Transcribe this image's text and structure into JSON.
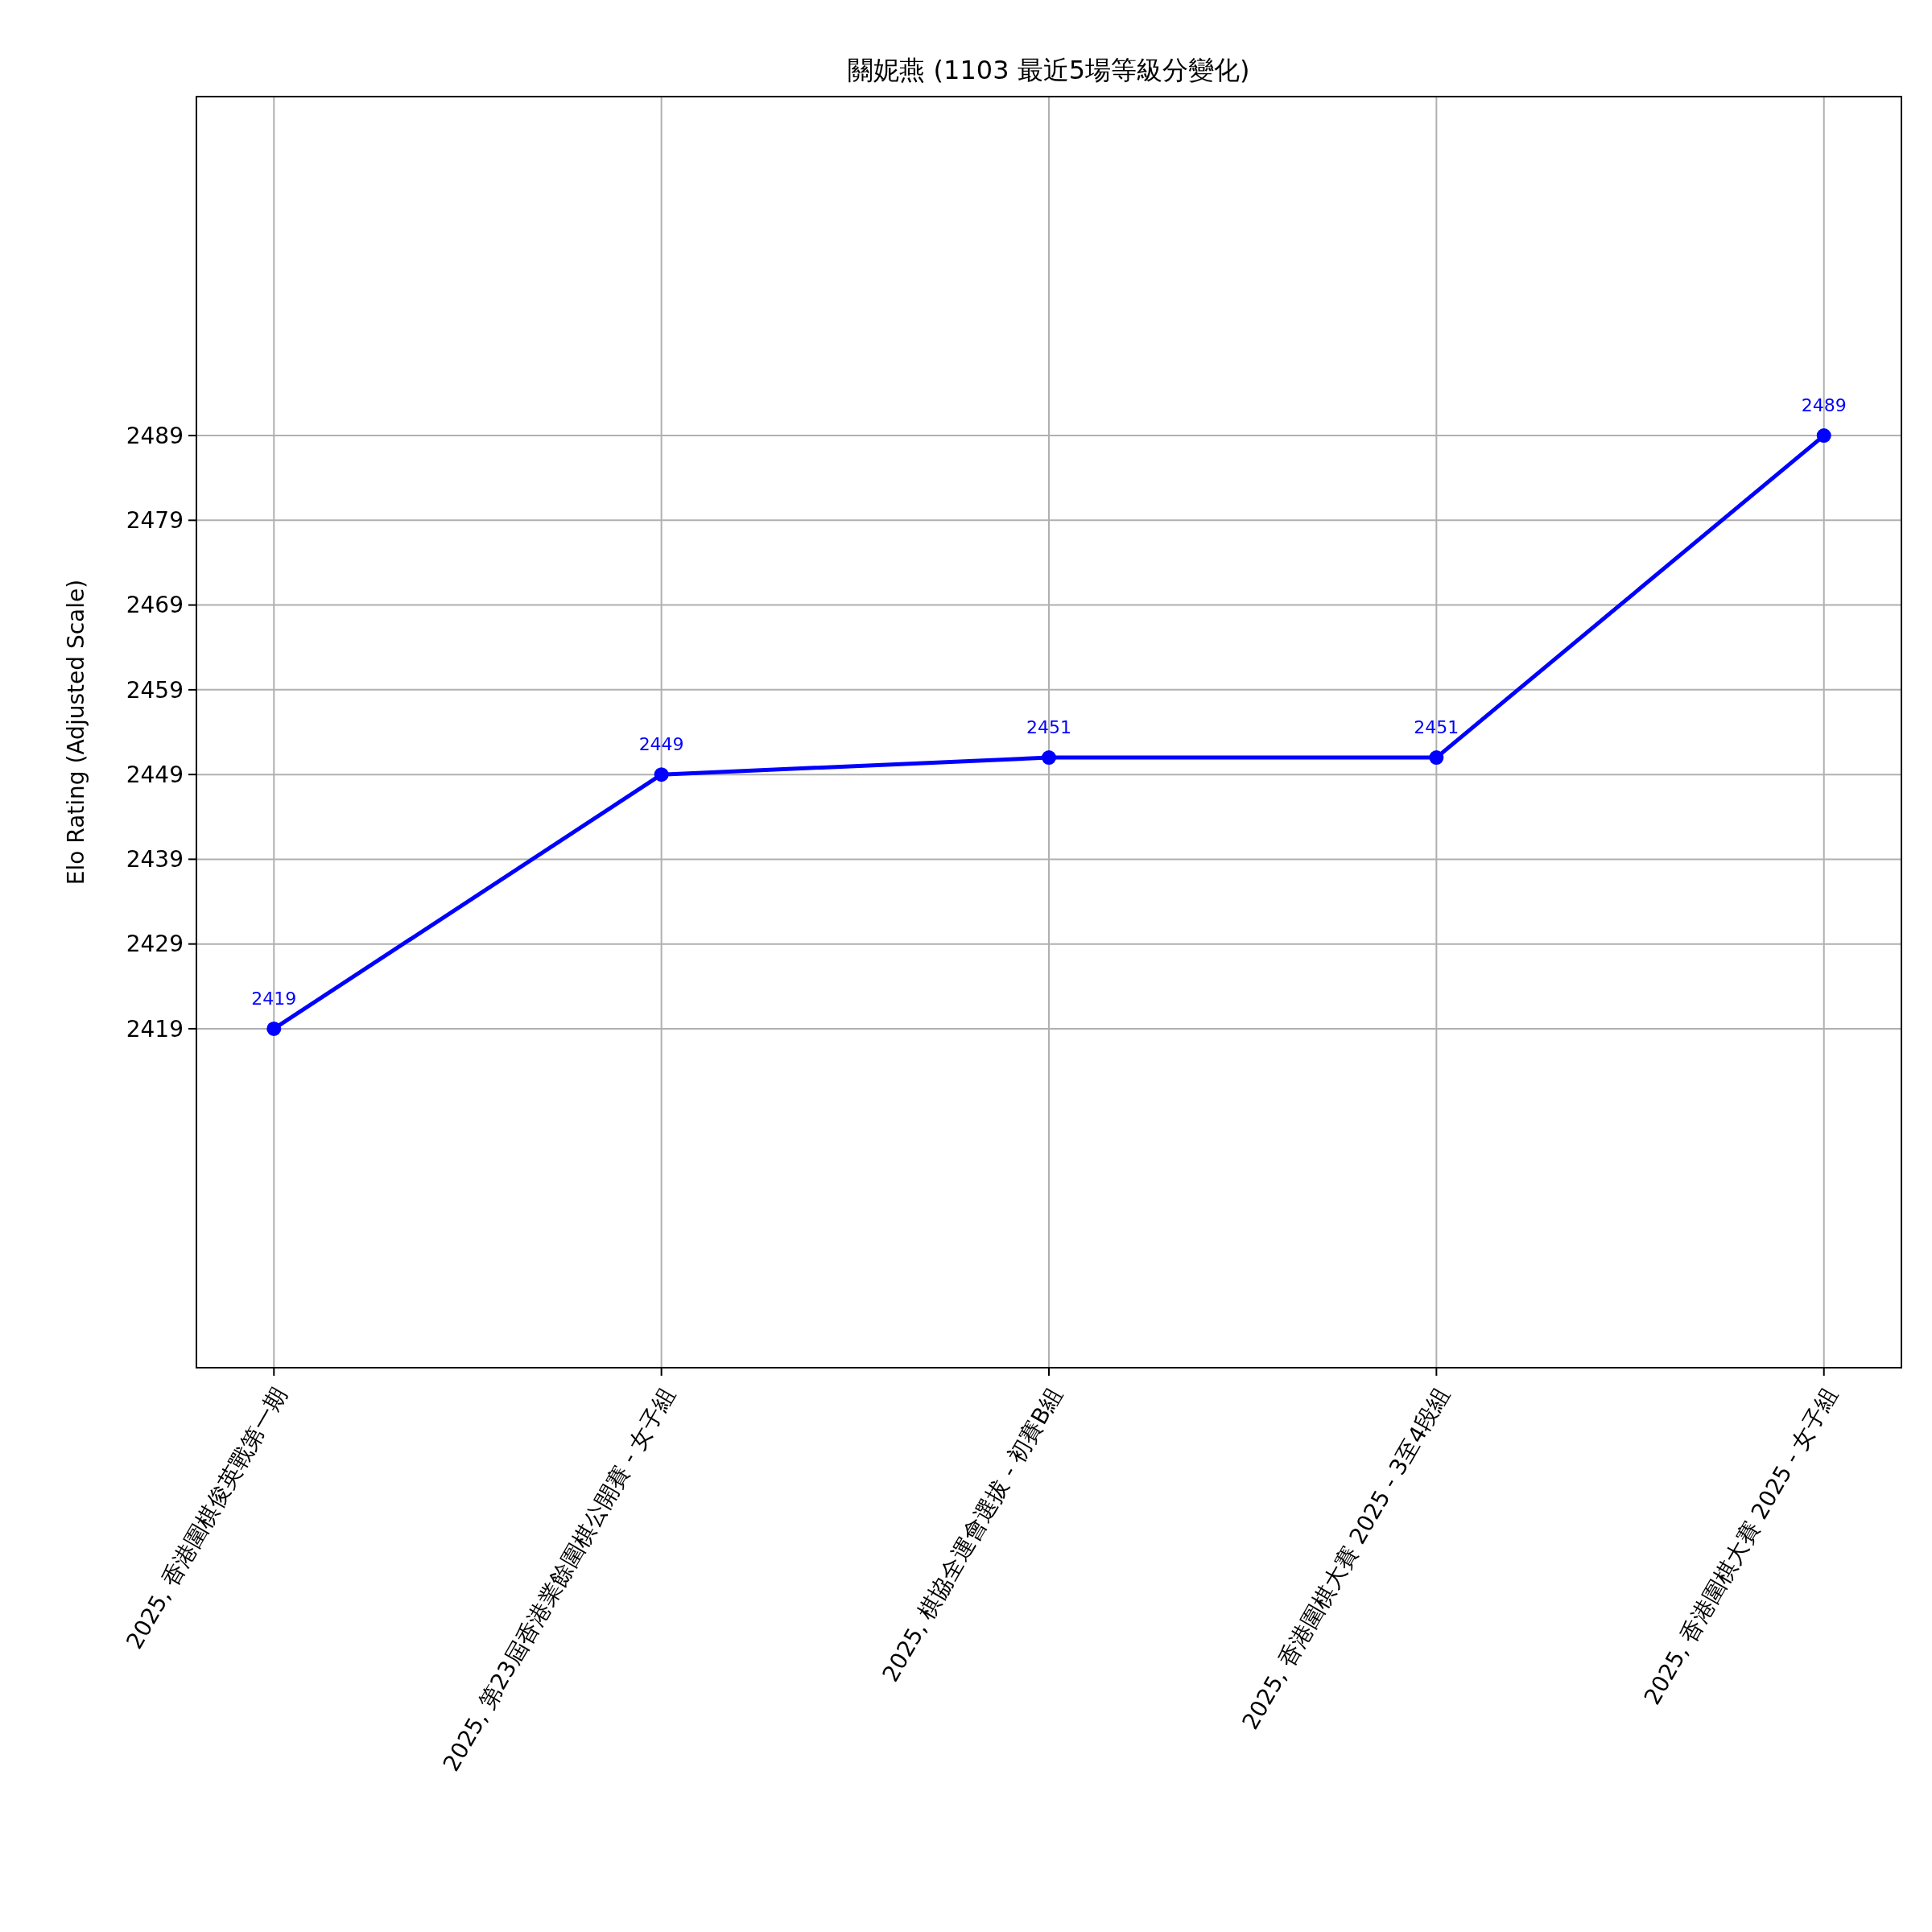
{
  "chart_data": {
    "type": "line",
    "title": "關妮燕 (1103 最近5場等級分變化)",
    "ylabel": "Elo Rating (Adjusted Scale)",
    "categories": [
      "2025, 香港圍棋俊英戰第一期",
      "2025, 第23屆香港業餘圍棋公開賽 - 女子組",
      "2025, 棋協全運會選拔 - 初賽B組",
      "2025, 香港圍棋大賽 2025 - 3至4段組",
      "2025, 香港圍棋大賽 2025 - 女子組"
    ],
    "series": [
      {
        "color": "#0000ff",
        "values": [
          2419,
          2449,
          2451,
          2451,
          2489
        ]
      }
    ],
    "ylim": [
      2379,
      2529
    ],
    "yticks": [
      2419,
      2429,
      2439,
      2449,
      2459,
      2469,
      2479,
      2489
    ],
    "grid": true,
    "marker": "circle",
    "line_style": "solid",
    "data_labels": true
  }
}
